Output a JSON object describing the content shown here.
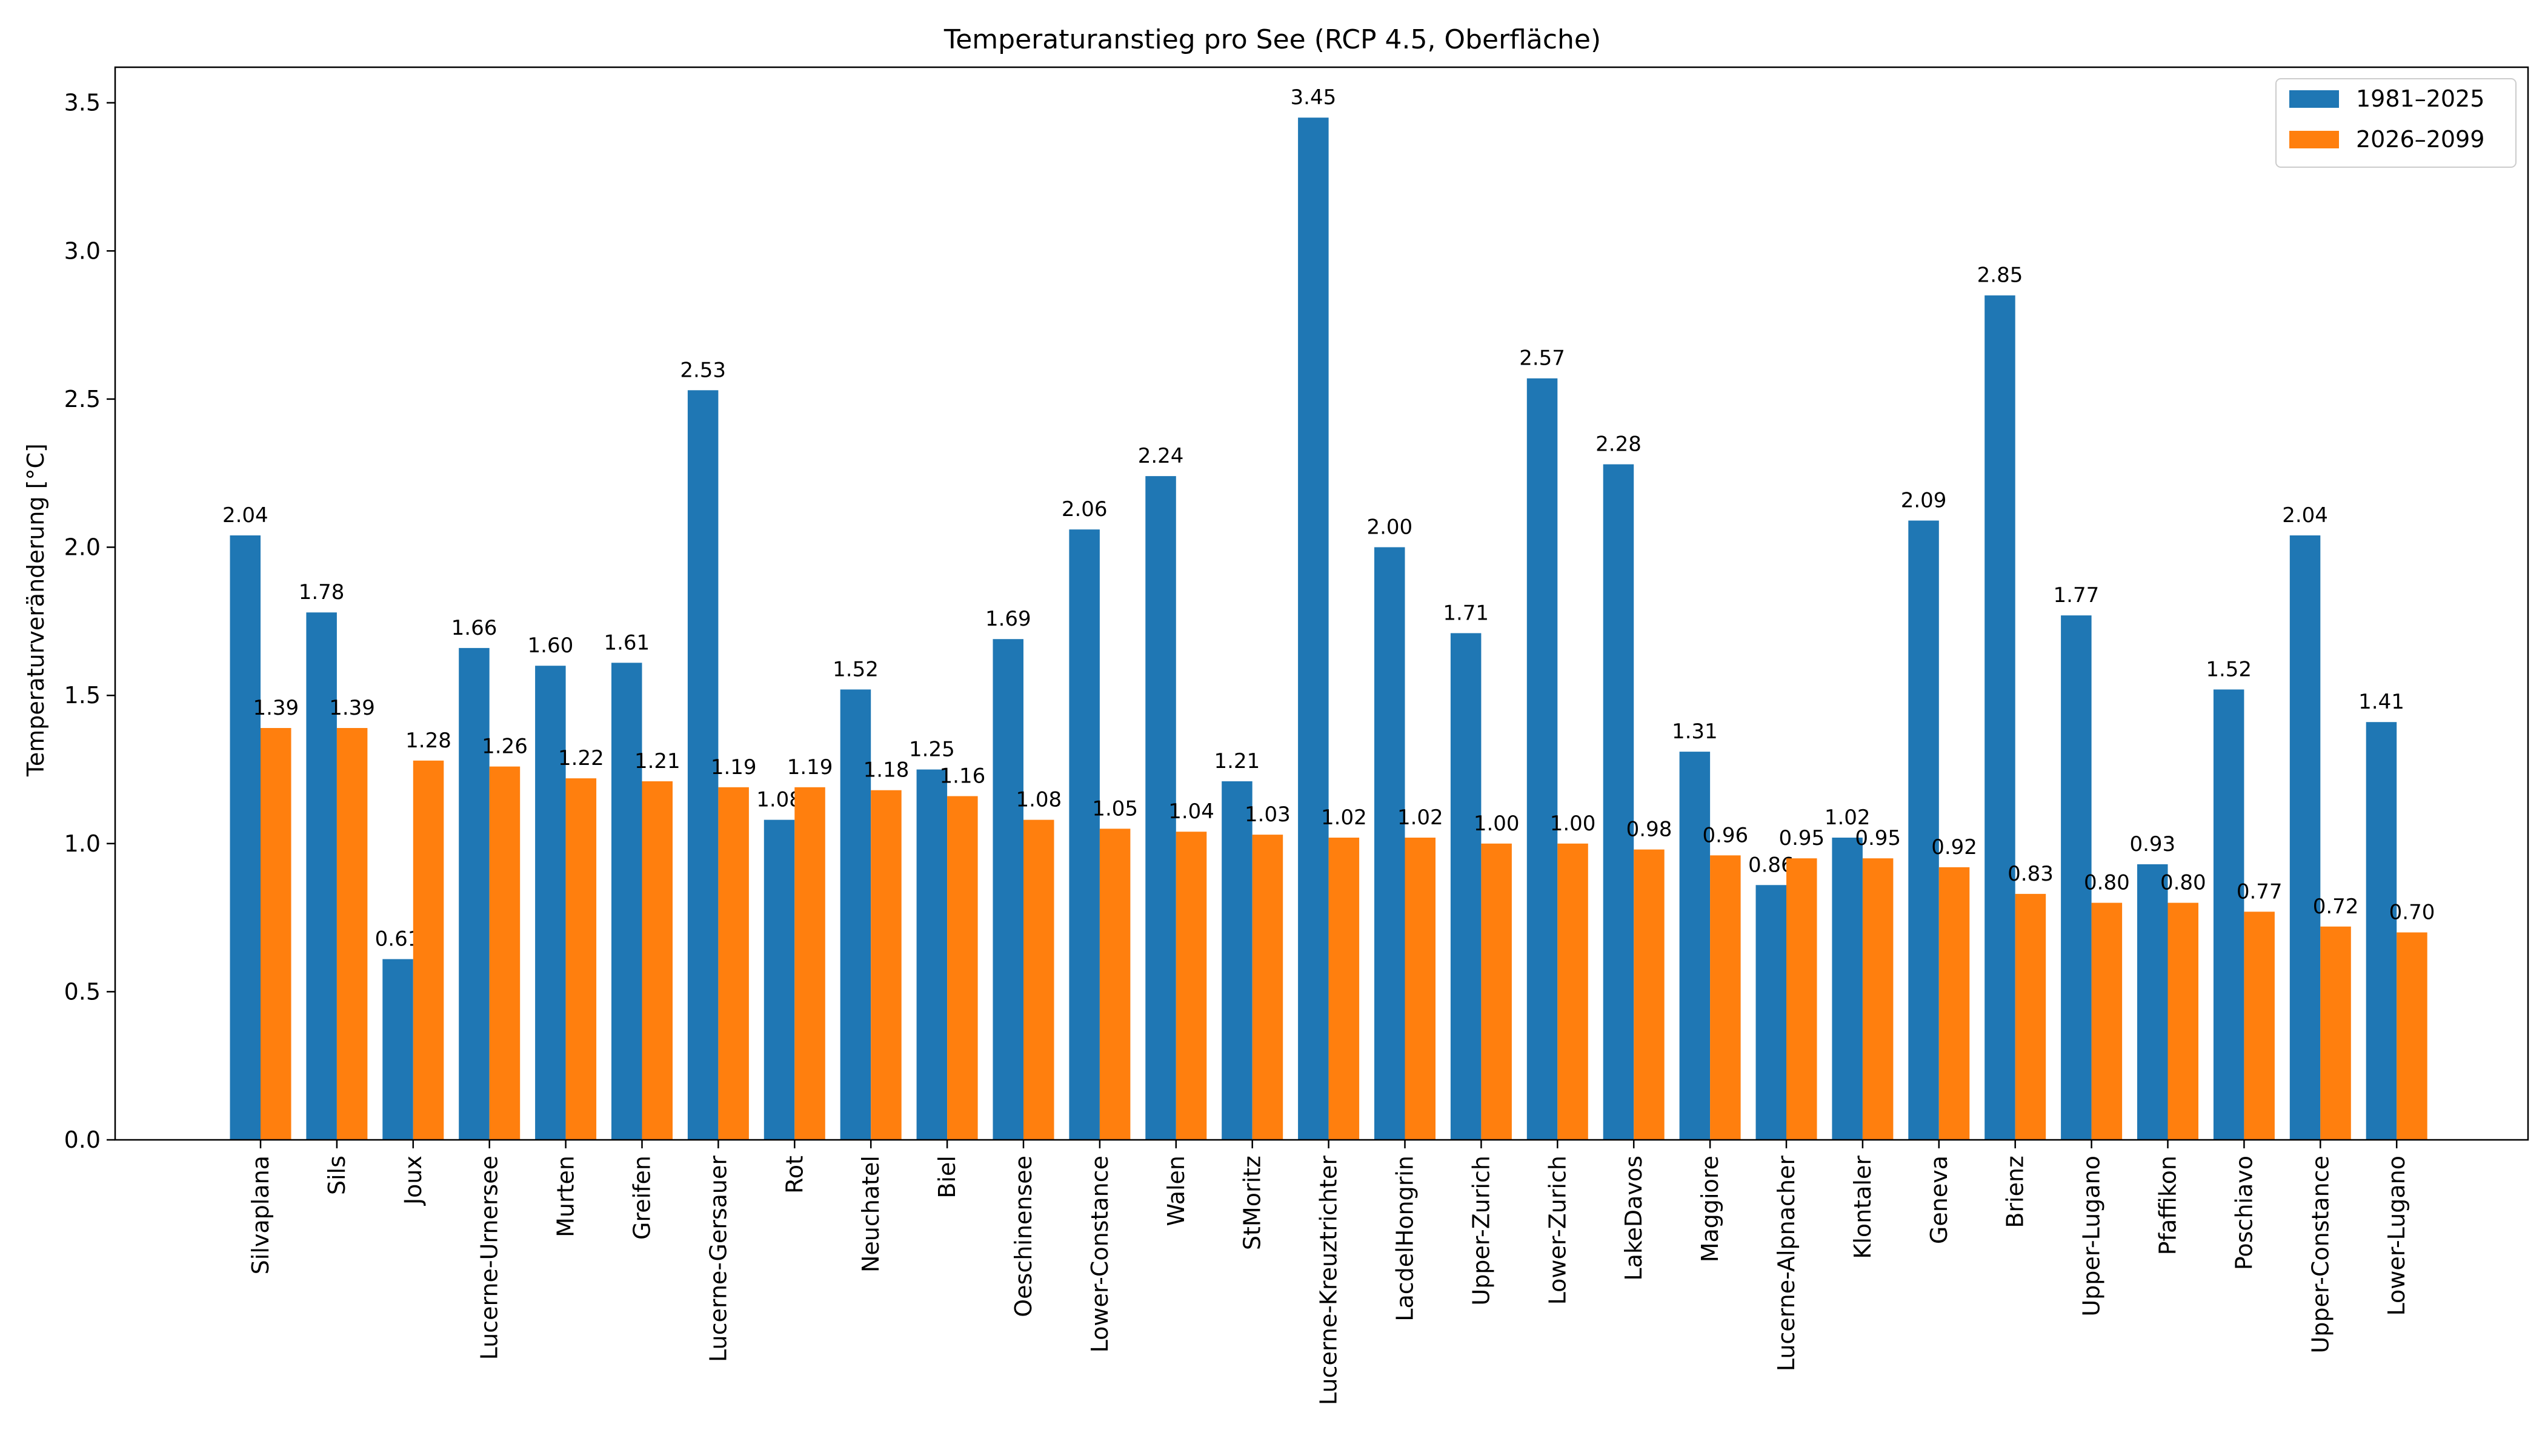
{
  "chart_data": {
    "type": "bar",
    "title": "Temperaturanstieg pro See (RCP 4.5, Oberfläche)",
    "xlabel": "",
    "ylabel": "Temperaturveränderung [°C]",
    "ylim": [
      0,
      3.62
    ],
    "yticks": [
      "0.0",
      "0.5",
      "1.0",
      "1.5",
      "2.0",
      "2.5",
      "3.0",
      "3.5"
    ],
    "grid": false,
    "legend_position": "top-right",
    "categories": [
      "Silvaplana",
      "Sils",
      "Joux",
      "Lucerne-Urnersee",
      "Murten",
      "Greifen",
      "Lucerne-Gersauer",
      "Rot",
      "Neuchatel",
      "Biel",
      "Oeschinensee",
      "Lower-Constance",
      "Walen",
      "StMoritz",
      "Lucerne-Kreuztrichter",
      "LacdelHongrin",
      "Upper-Zurich",
      "Lower-Zurich",
      "LakeDavos",
      "Maggiore",
      "Lucerne-Alpnacher",
      "Klontaler",
      "Geneva",
      "Brienz",
      "Upper-Lugano",
      "Pfaffikon",
      "Poschiavo",
      "Upper-Constance",
      "Lower-Lugano"
    ],
    "series": [
      {
        "name": "1981–2025",
        "color": "#1f77b4",
        "values": [
          2.04,
          1.78,
          0.61,
          1.66,
          1.6,
          1.61,
          2.53,
          1.08,
          1.52,
          1.25,
          1.69,
          2.06,
          2.24,
          1.21,
          3.45,
          2.0,
          1.71,
          2.57,
          2.28,
          1.31,
          0.86,
          1.02,
          2.09,
          2.85,
          1.77,
          0.93,
          1.52,
          2.04,
          1.41
        ],
        "labels": [
          "2.04",
          "1.78",
          "0.61",
          "1.66",
          "1.60",
          "1.61",
          "2.53",
          "1.08",
          "1.52",
          "1.25",
          "1.69",
          "2.06",
          "2.24",
          "1.21",
          "3.45",
          "2.00",
          "1.71",
          "2.57",
          "2.28",
          "1.31",
          "0.86",
          "1.02",
          "2.09",
          "2.85",
          "1.77",
          "0.93",
          "1.52",
          "2.04",
          "1.41"
        ]
      },
      {
        "name": "2026–2099",
        "color": "#ff7f0e",
        "values": [
          1.39,
          1.39,
          1.28,
          1.26,
          1.22,
          1.21,
          1.19,
          1.19,
          1.18,
          1.16,
          1.08,
          1.05,
          1.04,
          1.03,
          1.02,
          1.02,
          1.0,
          1.0,
          0.98,
          0.96,
          0.95,
          0.95,
          0.92,
          0.83,
          0.8,
          0.8,
          0.77,
          0.72,
          0.7
        ],
        "labels": [
          "1.39",
          "1.39",
          "1.28",
          "1.26",
          "1.22",
          "1.21",
          "1.19",
          "1.19",
          "1.18",
          "1.16",
          "1.08",
          "1.05",
          "1.04",
          "1.03",
          "1.02",
          "1.02",
          "1.00",
          "1.00",
          "0.98",
          "0.96",
          "0.95",
          "0.95",
          "0.92",
          "0.83",
          "0.80",
          "0.80",
          "0.77",
          "0.72",
          "0.70"
        ]
      }
    ]
  }
}
